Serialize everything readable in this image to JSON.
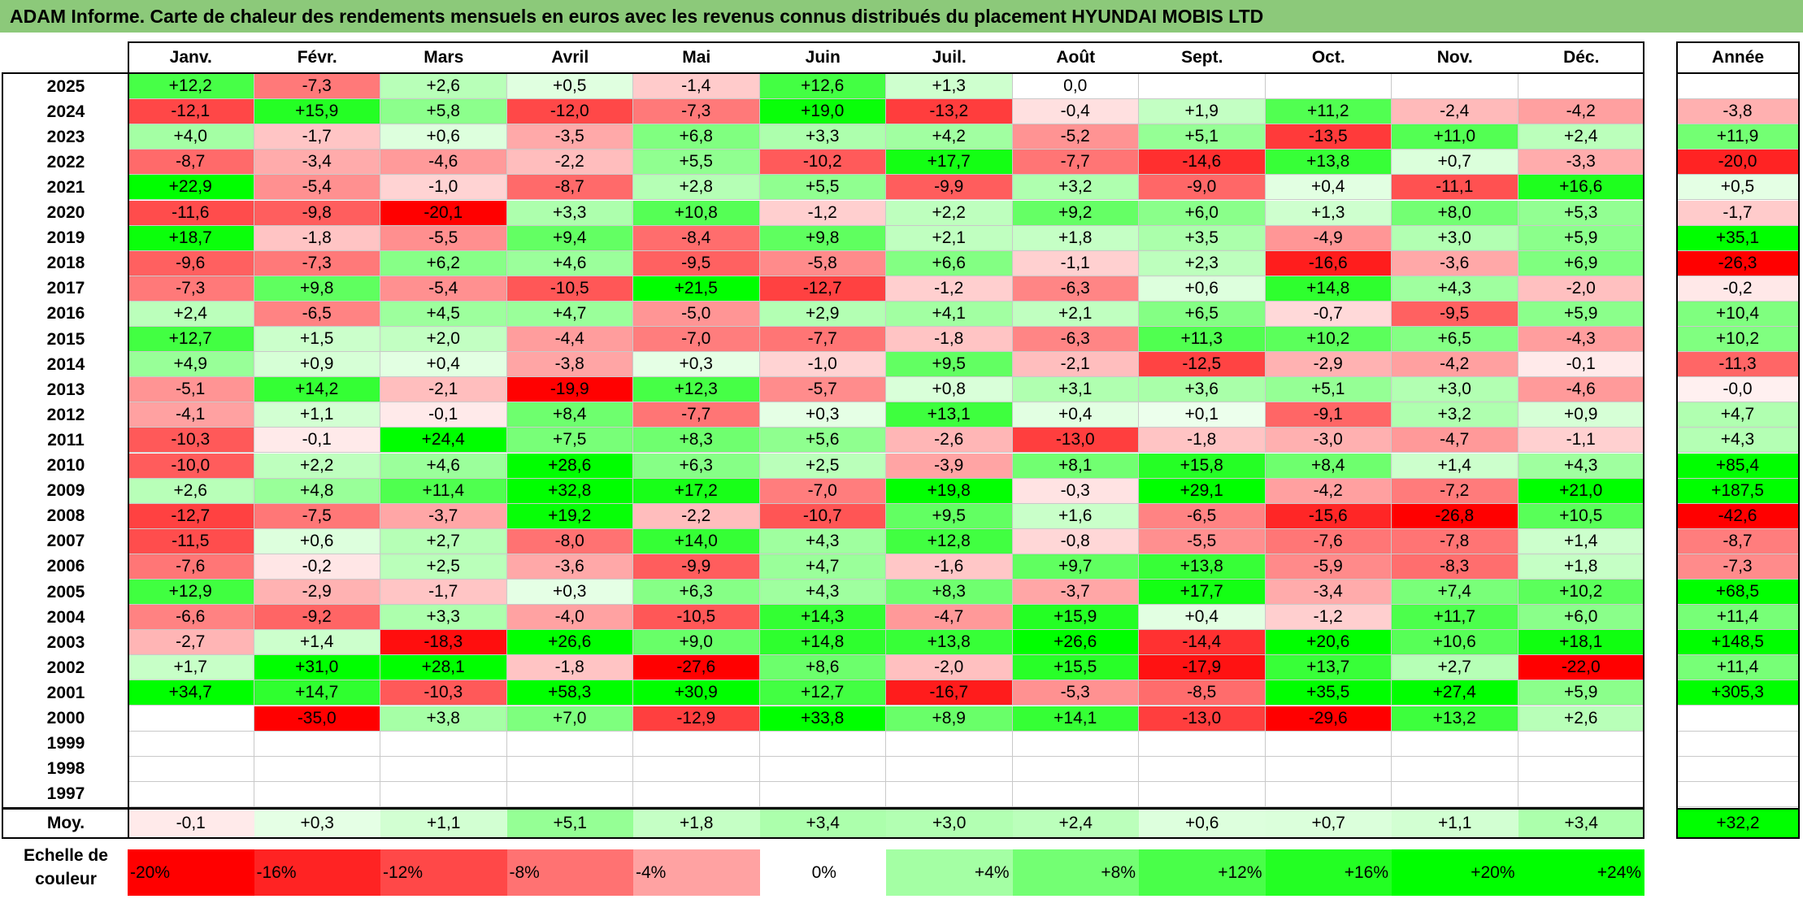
{
  "title": "ADAM Informe. Carte de chaleur des rendements mensuels en euros avec les revenus connus distribués du placement HYUNDAI MOBIS LTD",
  "months": [
    "Janv.",
    "Févr.",
    "Mars",
    "Avril",
    "Mai",
    "Juin",
    "Juil.",
    "Août",
    "Sept.",
    "Oct.",
    "Nov.",
    "Déc."
  ],
  "year_header": "Année",
  "avg_label": "Moy.",
  "scale_label": "Echelle de couleur",
  "colors": {
    "title_bg": "#8cc97a",
    "max_red": "#ff0000",
    "max_green": "#00ff00",
    "neutral": "#ffffff"
  },
  "chart_data": {
    "type": "heatmap",
    "title": "ADAM Informe. Carte de chaleur des rendements mensuels en euros avec les revenus connus distribués du placement HYUNDAI MOBIS LTD",
    "columns": [
      "Janv.",
      "Févr.",
      "Mars",
      "Avril",
      "Mai",
      "Juin",
      "Juil.",
      "Août",
      "Sept.",
      "Oct.",
      "Nov.",
      "Déc."
    ],
    "rows": [
      {
        "year": "2025",
        "values": [
          "+12,2",
          "-7,3",
          "+2,6",
          "+0,5",
          "-1,4",
          "+12,6",
          "+1,3",
          "0,0",
          "",
          "",
          "",
          ""
        ],
        "annual": ""
      },
      {
        "year": "2024",
        "values": [
          "-12,1",
          "+15,9",
          "+5,8",
          "-12,0",
          "-7,3",
          "+19,0",
          "-13,2",
          "-0,4",
          "+1,9",
          "+11,2",
          "-2,4",
          "-4,2"
        ],
        "annual": "-3,8"
      },
      {
        "year": "2023",
        "values": [
          "+4,0",
          "-1,7",
          "+0,6",
          "-3,5",
          "+6,8",
          "+3,3",
          "+4,2",
          "-5,2",
          "+5,1",
          "-13,5",
          "+11,0",
          "+2,4"
        ],
        "annual": "+11,9"
      },
      {
        "year": "2022",
        "values": [
          "-8,7",
          "-3,4",
          "-4,6",
          "-2,2",
          "+5,5",
          "-10,2",
          "+17,7",
          "-7,7",
          "-14,6",
          "+13,8",
          "+0,7",
          "-3,3"
        ],
        "annual": "-20,0"
      },
      {
        "year": "2021",
        "values": [
          "+22,9",
          "-5,4",
          "-1,0",
          "-8,7",
          "+2,8",
          "+5,5",
          "-9,9",
          "+3,2",
          "-9,0",
          "+0,4",
          "-11,1",
          "+16,6"
        ],
        "annual": "+0,5"
      },
      {
        "year": "2020",
        "values": [
          "-11,6",
          "-9,8",
          "-20,1",
          "+3,3",
          "+10,8",
          "-1,2",
          "+2,2",
          "+9,2",
          "+6,0",
          "+1,3",
          "+8,0",
          "+5,3"
        ],
        "annual": "-1,7"
      },
      {
        "year": "2019",
        "values": [
          "+18,7",
          "-1,8",
          "-5,5",
          "+9,4",
          "-8,4",
          "+9,8",
          "+2,1",
          "+1,8",
          "+3,5",
          "-4,9",
          "+3,0",
          "+5,9"
        ],
        "annual": "+35,1"
      },
      {
        "year": "2018",
        "values": [
          "-9,6",
          "-7,3",
          "+6,2",
          "+4,6",
          "-9,5",
          "-5,8",
          "+6,6",
          "-1,1",
          "+2,3",
          "-16,6",
          "-3,6",
          "+6,9"
        ],
        "annual": "-26,3"
      },
      {
        "year": "2017",
        "values": [
          "-7,3",
          "+9,8",
          "-5,4",
          "-10,5",
          "+21,5",
          "-12,7",
          "-1,2",
          "-6,3",
          "+0,6",
          "+14,8",
          "+4,3",
          "-2,0"
        ],
        "annual": "-0,2"
      },
      {
        "year": "2016",
        "values": [
          "+2,4",
          "-6,5",
          "+4,5",
          "+4,7",
          "-5,0",
          "+2,9",
          "+4,1",
          "+2,1",
          "+6,5",
          "-0,7",
          "-9,5",
          "+5,9"
        ],
        "annual": "+10,4"
      },
      {
        "year": "2015",
        "values": [
          "+12,7",
          "+1,5",
          "+2,0",
          "-4,4",
          "-7,0",
          "-7,7",
          "-1,8",
          "-6,3",
          "+11,3",
          "+10,2",
          "+6,5",
          "-4,3"
        ],
        "annual": "+10,2"
      },
      {
        "year": "2014",
        "values": [
          "+4,9",
          "+0,9",
          "+0,4",
          "-3,8",
          "+0,3",
          "-1,0",
          "+9,5",
          "-2,1",
          "-12,5",
          "-2,9",
          "-4,2",
          "-0,1"
        ],
        "annual": "-11,3"
      },
      {
        "year": "2013",
        "values": [
          "-5,1",
          "+14,2",
          "-2,1",
          "-19,9",
          "+12,3",
          "-5,7",
          "+0,8",
          "+3,1",
          "+3,6",
          "+5,1",
          "+3,0",
          "-4,6"
        ],
        "annual": "-0,0"
      },
      {
        "year": "2012",
        "values": [
          "-4,1",
          "+1,1",
          "-0,1",
          "+8,4",
          "-7,7",
          "+0,3",
          "+13,1",
          "+0,4",
          "+0,1",
          "-9,1",
          "+3,2",
          "+0,9"
        ],
        "annual": "+4,7"
      },
      {
        "year": "2011",
        "values": [
          "-10,3",
          "-0,1",
          "+24,4",
          "+7,5",
          "+8,3",
          "+5,6",
          "-2,6",
          "-13,0",
          "-1,8",
          "-3,0",
          "-4,7",
          "-1,1"
        ],
        "annual": "+4,3"
      },
      {
        "year": "2010",
        "values": [
          "-10,0",
          "+2,2",
          "+4,6",
          "+28,6",
          "+6,3",
          "+2,5",
          "-3,9",
          "+8,1",
          "+15,8",
          "+8,4",
          "+1,4",
          "+4,3"
        ],
        "annual": "+85,4"
      },
      {
        "year": "2009",
        "values": [
          "+2,6",
          "+4,8",
          "+11,4",
          "+32,8",
          "+17,2",
          "-7,0",
          "+19,8",
          "-0,3",
          "+29,1",
          "-4,2",
          "-7,2",
          "+21,0"
        ],
        "annual": "+187,5"
      },
      {
        "year": "2008",
        "values": [
          "-12,7",
          "-7,5",
          "-3,7",
          "+19,2",
          "-2,2",
          "-10,7",
          "+9,5",
          "+1,6",
          "-6,5",
          "-15,6",
          "-26,8",
          "+10,5"
        ],
        "annual": "-42,6"
      },
      {
        "year": "2007",
        "values": [
          "-11,5",
          "+0,6",
          "+2,7",
          "-8,0",
          "+14,0",
          "+4,3",
          "+12,8",
          "-0,8",
          "-5,5",
          "-7,6",
          "-7,8",
          "+1,4"
        ],
        "annual": "-8,7"
      },
      {
        "year": "2006",
        "values": [
          "-7,6",
          "-0,2",
          "+2,5",
          "-3,6",
          "-9,9",
          "+4,7",
          "-1,6",
          "+9,7",
          "+13,8",
          "-5,9",
          "-8,3",
          "+1,8"
        ],
        "annual": "-7,3"
      },
      {
        "year": "2005",
        "values": [
          "+12,9",
          "-2,9",
          "-1,7",
          "+0,3",
          "+6,3",
          "+4,3",
          "+8,3",
          "-3,7",
          "+17,7",
          "-3,4",
          "+7,4",
          "+10,2"
        ],
        "annual": "+68,5"
      },
      {
        "year": "2004",
        "values": [
          "-6,6",
          "-9,2",
          "+3,3",
          "-4,0",
          "-10,5",
          "+14,3",
          "-4,7",
          "+15,9",
          "+0,4",
          "-1,2",
          "+11,7",
          "+6,0"
        ],
        "annual": "+11,4"
      },
      {
        "year": "2003",
        "values": [
          "-2,7",
          "+1,4",
          "-18,3",
          "+26,6",
          "+9,0",
          "+14,8",
          "+13,8",
          "+26,6",
          "-14,4",
          "+20,6",
          "+10,6",
          "+18,1"
        ],
        "annual": "+148,5"
      },
      {
        "year": "2002",
        "values": [
          "+1,7",
          "+31,0",
          "+28,1",
          "-1,8",
          "-27,6",
          "+8,6",
          "-2,0",
          "+15,5",
          "-17,9",
          "+13,7",
          "+2,7",
          "-22,0"
        ],
        "annual": "+11,4"
      },
      {
        "year": "2001",
        "values": [
          "+34,7",
          "+14,7",
          "-10,3",
          "+58,3",
          "+30,9",
          "+12,7",
          "-16,7",
          "-5,3",
          "-8,5",
          "+35,5",
          "+27,4",
          "+5,9"
        ],
        "annual": "+305,3"
      },
      {
        "year": "2000",
        "values": [
          "",
          "-35,0",
          "+3,8",
          "+7,0",
          "-12,9",
          "+33,8",
          "+8,9",
          "+14,1",
          "-13,0",
          "-29,6",
          "+13,2",
          "+2,6"
        ],
        "annual": ""
      },
      {
        "year": "1999",
        "values": [
          "",
          "",
          "",
          "",
          "",
          "",
          "",
          "",
          "",
          "",
          "",
          ""
        ],
        "annual": ""
      },
      {
        "year": "1998",
        "values": [
          "",
          "",
          "",
          "",
          "",
          "",
          "",
          "",
          "",
          "",
          "",
          ""
        ],
        "annual": ""
      },
      {
        "year": "1997",
        "values": [
          "",
          "",
          "",
          "",
          "",
          "",
          "",
          "",
          "",
          "",
          "",
          ""
        ],
        "annual": ""
      }
    ],
    "averages": [
      "-0,1",
      "+0,3",
      "+1,1",
      "+5,1",
      "+1,8",
      "+3,4",
      "+3,0",
      "+2,4",
      "+0,6",
      "+0,7",
      "+1,1",
      "+3,4"
    ],
    "average_annual": "+32,2",
    "scale": [
      "-20%",
      "-16%",
      "-12%",
      "-8%",
      "-4%",
      "0%",
      "+4%",
      "+8%",
      "+12%",
      "+16%",
      "+20%",
      "+24%"
    ],
    "scale_values": [
      -20,
      -16,
      -12,
      -8,
      -4,
      0,
      4,
      8,
      12,
      16,
      20,
      24
    ]
  }
}
